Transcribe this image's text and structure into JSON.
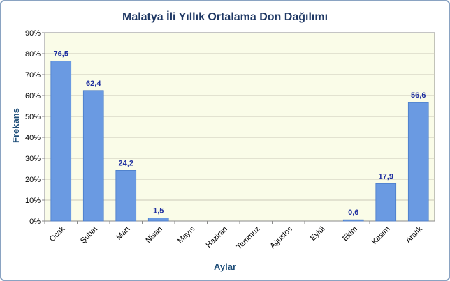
{
  "chart_data": {
    "type": "bar",
    "title": "Malatya İli Yıllık Ortalama Don Dağılımı",
    "xlabel": "Aylar",
    "ylabel": "Frekans",
    "ylim": [
      0,
      90
    ],
    "ytick_labels": [
      "0%",
      "10%",
      "20%",
      "30%",
      "40%",
      "50%",
      "60%",
      "70%",
      "80%",
      "90%"
    ],
    "categories": [
      "Ocak",
      "Şubat",
      "Mart",
      "Nisan",
      "Mayıs",
      "Haziran",
      "Temmuz",
      "Ağustos",
      "Eylül",
      "Ekim",
      "Kasım",
      "Aralık"
    ],
    "values": [
      76.5,
      62.4,
      24.2,
      1.5,
      0,
      0,
      0,
      0,
      0,
      0.6,
      17.9,
      56.6
    ],
    "data_labels": [
      "76,5",
      "62,4",
      "24,2",
      "1,5",
      "",
      "",
      "",
      "",
      "",
      "0,6",
      "17,9",
      "56,6"
    ],
    "grid": true,
    "legend": "none",
    "colors": {
      "bar": "#6a9ae2",
      "bar_stroke": "#4a7cc8",
      "plot_bg": "#fafce8",
      "grid": "#c9c9b8",
      "data_label": "#1f2fa0"
    }
  }
}
